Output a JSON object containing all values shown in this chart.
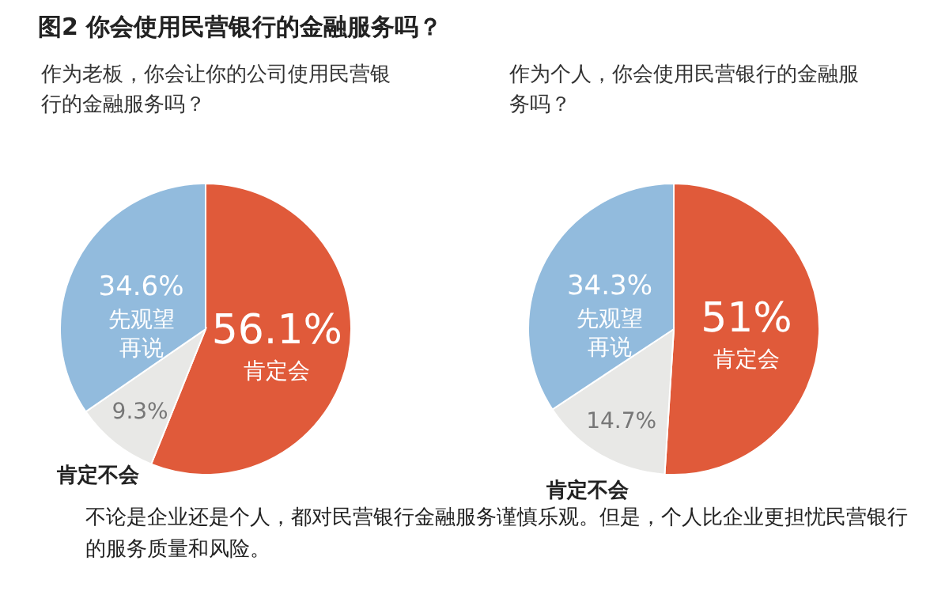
{
  "chart_data": [
    {
      "type": "pie",
      "title": "图2 你会使用民营银行的金融服务吗？",
      "subtitle": "作为老板，你会让你的公司使用民营银行的金融服务吗？",
      "categories": [
        "肯定会",
        "肯定不会",
        "先观望再说"
      ],
      "values": [
        56.1,
        9.3,
        34.6
      ],
      "colors": [
        "#e05a3a",
        "#e8e8e6",
        "#92bbdd"
      ],
      "value_labels": [
        "56.1%",
        "9.3%",
        "34.6%"
      ],
      "annotations": [
        "不论是企业还是个人，都对民营银行金融服务谨慎乐观。但是，个人比企业更担忧民营银行的服务质量和风险。"
      ]
    },
    {
      "type": "pie",
      "subtitle": "作为个人，你会使用民营银行的金融服务吗？",
      "categories": [
        "肯定会",
        "肯定不会",
        "先观望再说"
      ],
      "values": [
        51,
        14.7,
        34.3
      ],
      "colors": [
        "#e05a3a",
        "#e8e8e6",
        "#92bbdd"
      ],
      "value_labels": [
        "51%",
        "14.7%",
        "34.3%"
      ]
    }
  ]
}
